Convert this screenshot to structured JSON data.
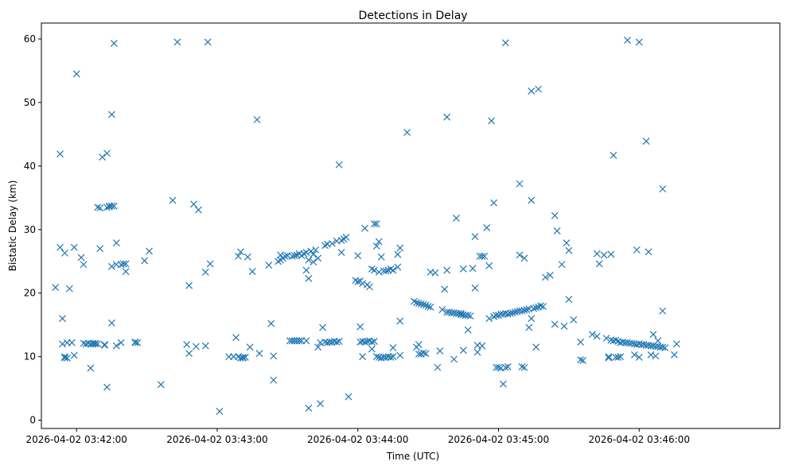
{
  "chart_data": {
    "type": "scatter",
    "title": "Detections in Delay",
    "xlabel": "Time (UTC)",
    "ylabel": "Bistatic Delay (km)",
    "marker": "x",
    "color": "#1f77b4",
    "grid": false,
    "x_ticks": [
      "2026-04-02 03:42:00",
      "2026-04-02 03:43:00",
      "2026-04-02 03:44:00",
      "2026-04-02 03:45:00",
      "2026-04-02 03:46:00"
    ],
    "y_ticks": [
      0,
      10,
      20,
      30,
      40,
      50,
      60
    ],
    "xlim": [
      "2026-04-02 03:41:45",
      "2026-04-02 03:47:00"
    ],
    "ylim": [
      -1.3,
      62.5
    ],
    "points": [
      [
        "03:41:51",
        20.9
      ],
      [
        "03:41:53",
        41.9
      ],
      [
        "03:41:53",
        27.2
      ],
      [
        "03:41:54",
        16.0
      ],
      [
        "03:41:54",
        12.0
      ],
      [
        "03:41:55",
        26.3
      ],
      [
        "03:41:55",
        10.0
      ],
      [
        "03:41:55",
        9.8
      ],
      [
        "03:41:56",
        12.2
      ],
      [
        "03:41:56",
        9.8
      ],
      [
        "03:41:57",
        20.7
      ],
      [
        "03:41:58",
        12.2
      ],
      [
        "03:41:59",
        10.2
      ],
      [
        "03:41:59",
        27.2
      ],
      [
        "03:42:00",
        54.5
      ],
      [
        "03:42:02",
        25.6
      ],
      [
        "03:42:03",
        24.5
      ],
      [
        "03:42:03",
        12.1
      ],
      [
        "03:42:04",
        12.0
      ],
      [
        "03:42:05",
        12.1
      ],
      [
        "03:42:06",
        12.0
      ],
      [
        "03:42:06",
        8.2
      ],
      [
        "03:42:07",
        12.0
      ],
      [
        "03:42:07",
        12.1
      ],
      [
        "03:42:08",
        12.0
      ],
      [
        "03:42:08",
        12.1
      ],
      [
        "03:42:09",
        33.5
      ],
      [
        "03:42:09",
        12.0
      ],
      [
        "03:42:10",
        33.4
      ],
      [
        "03:42:10",
        27.0
      ],
      [
        "03:42:11",
        41.4
      ],
      [
        "03:42:12",
        11.8
      ],
      [
        "03:42:12",
        11.9
      ],
      [
        "03:42:13",
        5.2
      ],
      [
        "03:42:13",
        42.0
      ],
      [
        "03:42:13",
        33.5
      ],
      [
        "03:42:14",
        33.6
      ],
      [
        "03:42:14",
        33.7
      ],
      [
        "03:42:15",
        48.1
      ],
      [
        "03:42:15",
        33.7
      ],
      [
        "03:42:15",
        15.3
      ],
      [
        "03:42:15",
        24.2
      ],
      [
        "03:42:16",
        59.3
      ],
      [
        "03:42:16",
        33.7
      ],
      [
        "03:42:17",
        27.9
      ],
      [
        "03:42:17",
        24.5
      ],
      [
        "03:42:17",
        11.7
      ],
      [
        "03:42:19",
        24.5
      ],
      [
        "03:42:19",
        12.2
      ],
      [
        "03:42:20",
        24.6
      ],
      [
        "03:42:21",
        24.6
      ],
      [
        "03:42:21",
        23.4
      ],
      [
        "03:42:25",
        12.2
      ],
      [
        "03:42:25",
        12.3
      ],
      [
        "03:42:26",
        12.2
      ],
      [
        "03:42:29",
        25.1
      ],
      [
        "03:42:31",
        26.6
      ],
      [
        "03:42:36",
        5.6
      ],
      [
        "03:42:41",
        34.6
      ],
      [
        "03:42:43",
        59.5
      ],
      [
        "03:42:47",
        11.9
      ],
      [
        "03:42:48",
        21.2
      ],
      [
        "03:42:48",
        10.5
      ],
      [
        "03:42:50",
        34.0
      ],
      [
        "03:42:51",
        11.6
      ],
      [
        "03:42:52",
        33.1
      ],
      [
        "03:42:55",
        23.3
      ],
      [
        "03:42:55",
        11.7
      ],
      [
        "03:42:56",
        59.5
      ],
      [
        "03:42:57",
        24.6
      ],
      [
        "03:43:01",
        1.4
      ],
      [
        "03:43:05",
        10.0
      ],
      [
        "03:43:07",
        10.0
      ],
      [
        "03:43:08",
        13.0
      ],
      [
        "03:43:09",
        25.8
      ],
      [
        "03:43:09",
        10.0
      ],
      [
        "03:43:10",
        26.5
      ],
      [
        "03:43:10",
        9.8
      ],
      [
        "03:43:11",
        9.9
      ],
      [
        "03:43:11",
        9.8
      ],
      [
        "03:43:12",
        9.9
      ],
      [
        "03:43:13",
        25.7
      ],
      [
        "03:43:14",
        11.5
      ],
      [
        "03:43:15",
        23.4
      ],
      [
        "03:43:17",
        47.3
      ],
      [
        "03:43:18",
        10.5
      ],
      [
        "03:43:22",
        24.4
      ],
      [
        "03:43:23",
        15.2
      ],
      [
        "03:43:24",
        6.3
      ],
      [
        "03:43:24",
        10.1
      ],
      [
        "03:43:26",
        25.0
      ],
      [
        "03:43:27",
        25.2
      ],
      [
        "03:43:27",
        26.0
      ],
      [
        "03:43:28",
        25.5
      ],
      [
        "03:43:29",
        25.8
      ],
      [
        "03:43:30",
        25.9
      ],
      [
        "03:43:31",
        12.5
      ],
      [
        "03:43:32",
        25.8
      ],
      [
        "03:43:32",
        12.5
      ],
      [
        "03:43:33",
        25.9
      ],
      [
        "03:43:33",
        12.5
      ],
      [
        "03:43:34",
        26.0
      ],
      [
        "03:43:34",
        12.5
      ],
      [
        "03:43:35",
        26.2
      ],
      [
        "03:43:35",
        12.5
      ],
      [
        "03:43:36",
        25.9
      ],
      [
        "03:43:36",
        12.5
      ],
      [
        "03:43:37",
        26.2
      ],
      [
        "03:43:38",
        26.4
      ],
      [
        "03:43:38",
        23.6
      ],
      [
        "03:43:38",
        12.5
      ],
      [
        "03:43:39",
        1.9
      ],
      [
        "03:43:39",
        25.2
      ],
      [
        "03:43:39",
        22.3
      ],
      [
        "03:43:40",
        26.6
      ],
      [
        "03:43:41",
        24.9
      ],
      [
        "03:43:41",
        26.1
      ],
      [
        "03:43:42",
        26.8
      ],
      [
        "03:43:43",
        25.5
      ],
      [
        "03:43:43",
        11.5
      ],
      [
        "03:43:44",
        2.6
      ],
      [
        "03:43:44",
        12.2
      ],
      [
        "03:43:45",
        14.6
      ],
      [
        "03:43:46",
        27.5
      ],
      [
        "03:43:46",
        12.3
      ],
      [
        "03:43:47",
        12.2
      ],
      [
        "03:43:47",
        27.7
      ],
      [
        "03:43:48",
        12.3
      ],
      [
        "03:43:49",
        27.8
      ],
      [
        "03:43:49",
        12.3
      ],
      [
        "03:43:50",
        12.4
      ],
      [
        "03:43:51",
        12.3
      ],
      [
        "03:43:51",
        28.2
      ],
      [
        "03:43:52",
        40.2
      ],
      [
        "03:43:52",
        12.4
      ],
      [
        "03:43:53",
        28.3
      ],
      [
        "03:43:53",
        26.4
      ],
      [
        "03:43:54",
        28.5
      ],
      [
        "03:43:55",
        28.8
      ],
      [
        "03:43:56",
        3.7
      ],
      [
        "03:43:59",
        22.0
      ],
      [
        "03:44:00",
        21.8
      ],
      [
        "03:44:00",
        25.9
      ],
      [
        "03:44:01",
        14.7
      ],
      [
        "03:44:01",
        21.9
      ],
      [
        "03:44:01",
        12.3
      ],
      [
        "03:44:02",
        21.5
      ],
      [
        "03:44:02",
        12.4
      ],
      [
        "03:44:02",
        10.0
      ],
      [
        "03:44:03",
        30.2
      ],
      [
        "03:44:03",
        12.3
      ],
      [
        "03:44:04",
        21.3
      ],
      [
        "03:44:04",
        12.4
      ],
      [
        "03:44:05",
        21.0
      ],
      [
        "03:44:05",
        12.5
      ],
      [
        "03:44:06",
        12.3
      ],
      [
        "03:44:06",
        11.2
      ],
      [
        "03:44:06",
        23.8
      ],
      [
        "03:44:07",
        30.9
      ],
      [
        "03:44:07",
        23.6
      ],
      [
        "03:44:07",
        12.4
      ],
      [
        "03:44:08",
        27.4
      ],
      [
        "03:44:08",
        30.9
      ],
      [
        "03:44:08",
        10.0
      ],
      [
        "03:44:09",
        28.1
      ],
      [
        "03:44:09",
        9.9
      ],
      [
        "03:44:09",
        23.3
      ],
      [
        "03:44:10",
        9.8
      ],
      [
        "03:44:10",
        25.7
      ],
      [
        "03:44:11",
        23.5
      ],
      [
        "03:44:11",
        9.9
      ],
      [
        "03:44:12",
        9.9
      ],
      [
        "03:44:12",
        23.5
      ],
      [
        "03:44:13",
        23.6
      ],
      [
        "03:44:13",
        10.0
      ],
      [
        "03:44:14",
        23.8
      ],
      [
        "03:44:14",
        9.9
      ],
      [
        "03:44:15",
        23.6
      ],
      [
        "03:44:15",
        10.0
      ],
      [
        "03:44:15",
        11.4
      ],
      [
        "03:44:17",
        24.1
      ],
      [
        "03:44:17",
        26.1
      ],
      [
        "03:44:18",
        27.1
      ],
      [
        "03:44:18",
        15.6
      ],
      [
        "03:44:18",
        10.2
      ],
      [
        "03:44:21",
        45.3
      ],
      [
        "03:44:24",
        18.7
      ],
      [
        "03:44:25",
        11.5
      ],
      [
        "03:44:25",
        18.5
      ],
      [
        "03:44:26",
        10.4
      ],
      [
        "03:44:26",
        18.4
      ],
      [
        "03:44:26",
        11.9
      ],
      [
        "03:44:27",
        18.3
      ],
      [
        "03:44:27",
        10.4
      ],
      [
        "03:44:28",
        18.2
      ],
      [
        "03:44:28",
        10.6
      ],
      [
        "03:44:29",
        18.1
      ],
      [
        "03:44:29",
        10.5
      ],
      [
        "03:44:30",
        17.9
      ],
      [
        "03:44:31",
        23.3
      ],
      [
        "03:44:31",
        17.8
      ],
      [
        "03:44:33",
        23.2
      ],
      [
        "03:44:34",
        8.3
      ],
      [
        "03:44:35",
        10.9
      ],
      [
        "03:44:36",
        17.4
      ],
      [
        "03:44:37",
        20.6
      ],
      [
        "03:44:38",
        47.7
      ],
      [
        "03:44:38",
        17.0
      ],
      [
        "03:44:38",
        23.6
      ],
      [
        "03:44:39",
        17.0
      ],
      [
        "03:44:40",
        16.9
      ],
      [
        "03:44:41",
        16.9
      ],
      [
        "03:44:41",
        9.6
      ],
      [
        "03:44:42",
        31.8
      ],
      [
        "03:44:42",
        16.8
      ],
      [
        "03:44:43",
        16.8
      ],
      [
        "03:44:44",
        16.8
      ],
      [
        "03:44:44",
        16.6
      ],
      [
        "03:44:45",
        23.8
      ],
      [
        "03:44:45",
        16.6
      ],
      [
        "03:44:45",
        11.0
      ],
      [
        "03:44:46",
        16.5
      ],
      [
        "03:44:47",
        16.5
      ],
      [
        "03:44:47",
        14.2
      ],
      [
        "03:44:48",
        16.4
      ],
      [
        "03:44:49",
        23.9
      ],
      [
        "03:44:50",
        28.9
      ],
      [
        "03:44:50",
        20.8
      ],
      [
        "03:44:51",
        11.8
      ],
      [
        "03:44:51",
        10.7
      ],
      [
        "03:44:52",
        25.8
      ],
      [
        "03:44:53",
        25.8
      ],
      [
        "03:44:53",
        11.7
      ],
      [
        "03:44:54",
        25.8
      ],
      [
        "03:44:55",
        30.3
      ],
      [
        "03:44:56",
        24.3
      ],
      [
        "03:44:56",
        16.0
      ],
      [
        "03:44:57",
        47.1
      ],
      [
        "03:44:58",
        34.2
      ],
      [
        "03:44:58",
        16.3
      ],
      [
        "03:44:59",
        16.5
      ],
      [
        "03:44:59",
        8.3
      ],
      [
        "03:45:00",
        16.5
      ],
      [
        "03:45:00",
        8.3
      ],
      [
        "03:45:01",
        16.7
      ],
      [
        "03:45:01",
        8.2
      ],
      [
        "03:45:02",
        16.7
      ],
      [
        "03:45:02",
        5.7
      ],
      [
        "03:45:03",
        16.8
      ],
      [
        "03:45:03",
        59.4
      ],
      [
        "03:45:03",
        8.3
      ],
      [
        "03:45:04",
        8.4
      ],
      [
        "03:45:04",
        16.7
      ],
      [
        "03:45:05",
        16.8
      ],
      [
        "03:45:06",
        16.9
      ],
      [
        "03:45:07",
        17.0
      ],
      [
        "03:45:08",
        17.1
      ],
      [
        "03:45:09",
        37.2
      ],
      [
        "03:45:09",
        26.0
      ],
      [
        "03:45:09",
        17.2
      ],
      [
        "03:45:10",
        8.4
      ],
      [
        "03:45:10",
        17.2
      ],
      [
        "03:45:11",
        25.5
      ],
      [
        "03:45:11",
        17.3
      ],
      [
        "03:45:11",
        8.3
      ],
      [
        "03:45:12",
        17.4
      ],
      [
        "03:45:13",
        14.6
      ],
      [
        "03:45:13",
        17.5
      ],
      [
        "03:45:14",
        51.8
      ],
      [
        "03:45:14",
        34.6
      ],
      [
        "03:45:14",
        16.0
      ],
      [
        "03:45:15",
        17.6
      ],
      [
        "03:45:16",
        17.7
      ],
      [
        "03:45:16",
        11.5
      ],
      [
        "03:45:17",
        52.1
      ],
      [
        "03:45:17",
        17.8
      ],
      [
        "03:45:18",
        18.0
      ],
      [
        "03:45:19",
        17.9
      ],
      [
        "03:45:20",
        22.5
      ],
      [
        "03:45:22",
        22.8
      ],
      [
        "03:45:24",
        32.2
      ],
      [
        "03:45:24",
        15.1
      ],
      [
        "03:45:25",
        29.8
      ],
      [
        "03:45:27",
        24.5
      ],
      [
        "03:45:28",
        14.8
      ],
      [
        "03:45:29",
        27.9
      ],
      [
        "03:45:30",
        26.7
      ],
      [
        "03:45:30",
        19.0
      ],
      [
        "03:45:32",
        15.8
      ],
      [
        "03:45:35",
        12.3
      ],
      [
        "03:45:35",
        9.5
      ],
      [
        "03:45:36",
        9.4
      ],
      [
        "03:45:40",
        13.5
      ],
      [
        "03:45:42",
        26.2
      ],
      [
        "03:45:42",
        13.2
      ],
      [
        "03:45:43",
        24.6
      ],
      [
        "03:45:45",
        26.0
      ],
      [
        "03:45:46",
        12.9
      ],
      [
        "03:45:47",
        10.0
      ],
      [
        "03:45:47",
        9.8
      ],
      [
        "03:45:48",
        26.1
      ],
      [
        "03:45:48",
        12.6
      ],
      [
        "03:45:49",
        12.5
      ],
      [
        "03:45:49",
        41.7
      ],
      [
        "03:45:50",
        12.6
      ],
      [
        "03:45:50",
        9.9
      ],
      [
        "03:45:51",
        12.4
      ],
      [
        "03:45:51",
        9.9
      ],
      [
        "03:45:52",
        12.2
      ],
      [
        "03:45:52",
        10.0
      ],
      [
        "03:45:53",
        12.3
      ],
      [
        "03:45:54",
        12.2
      ],
      [
        "03:45:55",
        59.8
      ],
      [
        "03:45:55",
        12.2
      ],
      [
        "03:45:56",
        12.1
      ],
      [
        "03:45:57",
        12.1
      ],
      [
        "03:45:58",
        12.0
      ],
      [
        "03:45:58",
        10.3
      ],
      [
        "03:45:59",
        26.8
      ],
      [
        "03:45:59",
        11.9
      ],
      [
        "03:46:00",
        59.5
      ],
      [
        "03:46:00",
        12.0
      ],
      [
        "03:46:00",
        9.9
      ],
      [
        "03:46:01",
        11.9
      ],
      [
        "03:46:02",
        11.9
      ],
      [
        "03:46:03",
        43.9
      ],
      [
        "03:46:03",
        11.8
      ],
      [
        "03:46:04",
        26.5
      ],
      [
        "03:46:04",
        11.8
      ],
      [
        "03:46:05",
        11.7
      ],
      [
        "03:46:05",
        10.3
      ],
      [
        "03:46:06",
        11.7
      ],
      [
        "03:46:06",
        13.5
      ],
      [
        "03:46:07",
        11.6
      ],
      [
        "03:46:07",
        10.1
      ],
      [
        "03:46:08",
        11.6
      ],
      [
        "03:46:08",
        12.5
      ],
      [
        "03:46:09",
        11.5
      ],
      [
        "03:46:10",
        11.5
      ],
      [
        "03:46:10",
        36.4
      ],
      [
        "03:46:10",
        17.2
      ],
      [
        "03:46:11",
        11.4
      ],
      [
        "03:46:15",
        10.3
      ],
      [
        "03:46:16",
        12.0
      ]
    ]
  }
}
